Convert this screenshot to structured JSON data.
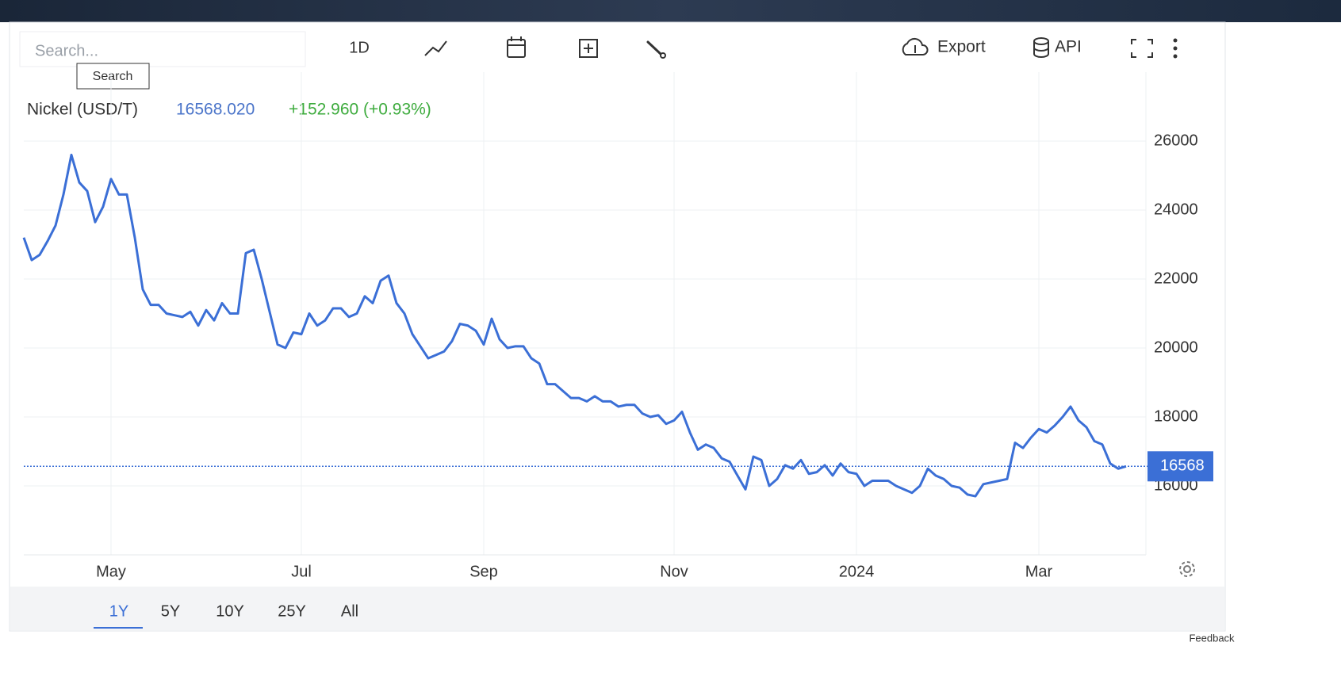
{
  "toolbar": {
    "search_placeholder": "Search...",
    "search_tooltip": "Search",
    "interval": "1D",
    "export": "Export",
    "api": "API",
    "ranges": [
      "1Y",
      "5Y",
      "10Y",
      "25Y",
      "All"
    ],
    "feedback": "Feedback"
  },
  "chart_data": {
    "type": "line",
    "title": "Nickel (USD/T)",
    "price": {
      "value": 16568.02,
      "label": "16568.020"
    },
    "change": "+152.960 (+0.93%)",
    "categories": [
      null,
      null,
      null,
      null,
      null,
      null,
      null,
      null,
      null,
      null,
      null,
      "May",
      null,
      null,
      null,
      null,
      null,
      null,
      null,
      null,
      null,
      null,
      null,
      null,
      null,
      null,
      null,
      null,
      null,
      null,
      null,
      null,
      null,
      null,
      null,
      "Jul",
      null,
      null,
      null,
      null,
      null,
      null,
      null,
      null,
      null,
      null,
      null,
      null,
      null,
      null,
      null,
      null,
      null,
      null,
      null,
      null,
      null,
      null,
      "Sep",
      null,
      null,
      null,
      null,
      null,
      null,
      null,
      null,
      null,
      null,
      null,
      null,
      null,
      null,
      null,
      null,
      null,
      null,
      null,
      null,
      null,
      null,
      null,
      "Nov",
      null,
      null,
      null,
      null,
      null,
      null,
      null,
      null,
      null,
      null,
      null,
      null,
      null,
      null,
      null,
      null,
      null,
      null,
      null,
      null,
      null,
      null,
      "2024",
      null,
      null,
      null,
      null,
      null,
      null,
      null,
      null,
      null,
      null,
      null,
      null,
      null,
      null,
      null,
      null,
      null,
      null,
      null,
      null,
      null,
      null,
      "Mar",
      null,
      null,
      null,
      null,
      null,
      null,
      null,
      null,
      null,
      null,
      null
    ],
    "series": [
      {
        "name": "Nickel (USD/T)",
        "color": "#3b6fd6",
        "values": [
          23200,
          22550,
          22700,
          23100,
          23550,
          24450,
          25600,
          24800,
          24550,
          23650,
          24100,
          24900,
          24450,
          24450,
          23200,
          21700,
          21250,
          21250,
          21000,
          20950,
          20900,
          21050,
          20650,
          21100,
          20800,
          21300,
          21000,
          21000,
          22750,
          22850,
          22000,
          21050,
          20100,
          20000,
          20450,
          20400,
          21000,
          20650,
          20800,
          21150,
          21150,
          20900,
          21000,
          21500,
          21300,
          21950,
          22100,
          21300,
          21000,
          20400,
          20050,
          19700,
          19800,
          19900,
          20200,
          20700,
          20650,
          20500,
          20100,
          20850,
          20250,
          20000,
          20050,
          20050,
          19700,
          19550,
          18950,
          18950,
          18750,
          18550,
          18550,
          18450,
          18600,
          18450,
          18450,
          18300,
          18350,
          18350,
          18100,
          18000,
          18050,
          17800,
          17900,
          18150,
          17550,
          17050,
          17200,
          17100,
          16800,
          16700,
          16300,
          15900,
          16850,
          16750,
          16000,
          16200,
          16600,
          16500,
          16750,
          16350,
          16400,
          16600,
          16300,
          16650,
          16400,
          16350,
          16000,
          16150,
          16150,
          16150,
          16000,
          15900,
          15800,
          16000,
          16500,
          16300,
          16200,
          16000,
          15950,
          15750,
          15700,
          16050,
          16100,
          16150,
          16200,
          17250,
          17100,
          17400,
          17650,
          17550,
          17750,
          18000,
          18300,
          17900,
          17700,
          17300,
          17200,
          16650,
          16500,
          16568
        ]
      }
    ],
    "last_value": 16568,
    "ylim": [
      14000,
      28000
    ],
    "yticks": [
      16000,
      18000,
      20000,
      22000,
      24000,
      26000
    ],
    "grid": true
  }
}
